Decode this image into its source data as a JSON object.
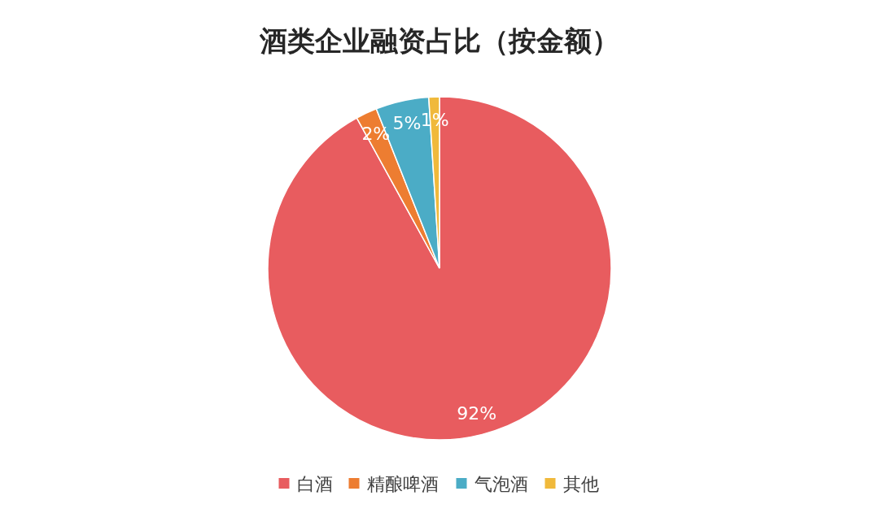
{
  "chart_data": {
    "type": "pie",
    "title": "酒类企业融资占比（按金额）",
    "categories": [
      "白酒",
      "精酿啤酒",
      "气泡酒",
      "其他"
    ],
    "values": [
      92,
      2,
      5,
      1
    ],
    "colors": [
      "#e85c5f",
      "#ed7d31",
      "#4bacc6",
      "#f0b93b"
    ],
    "value_labels": [
      "92%",
      "2%",
      "5%",
      "1%"
    ],
    "legend": "bottom"
  }
}
